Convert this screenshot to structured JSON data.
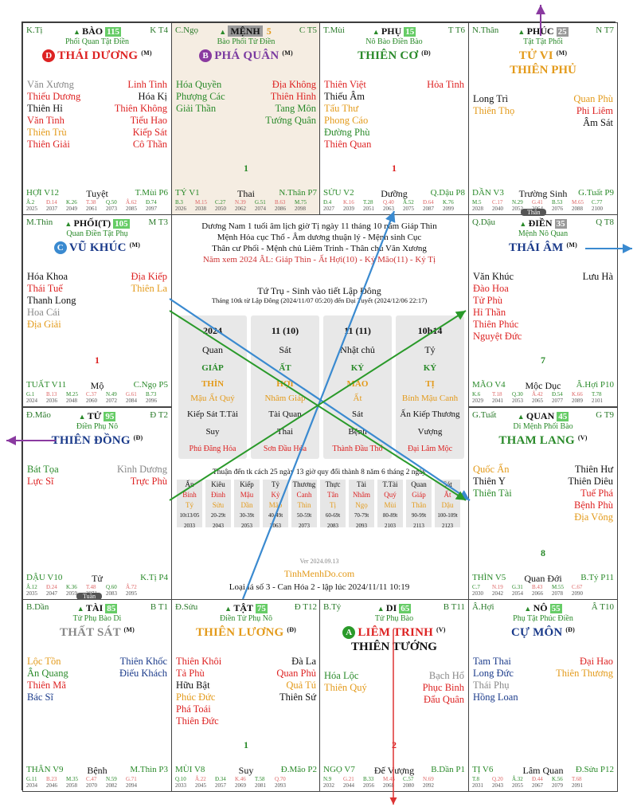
{
  "cells": [
    {
      "id": "ti",
      "pos_left": "K.Tị",
      "pos_name": "BÀO",
      "score": "115",
      "pos_right": "K T4",
      "sub": "Phối Quan Tật Điền",
      "main": "THÁI DƯƠNG",
      "main_suf": "(M)",
      "badge": "D",
      "left": [
        [
          "Văn Xương",
          "gry"
        ],
        [
          "Thiếu Dương",
          "red"
        ],
        [
          "Thiên Hỉ",
          "dk"
        ],
        [
          "Văn Tinh",
          "red"
        ],
        [
          "Thiên Trù",
          "org"
        ],
        [
          "Thiên Giải",
          "red"
        ]
      ],
      "right": [
        [
          "Linh Tinh",
          "red"
        ],
        [
          "Hóa Kị",
          "dk"
        ],
        [
          "Thiên Không",
          "red"
        ],
        [
          "Tiểu Hao",
          "red"
        ],
        [
          "Kiếp Sát",
          "red"
        ],
        [
          "Cô Thần",
          "red"
        ]
      ],
      "mid": "",
      "b1": "HỢI V12",
      "b2": "Tuyệt",
      "b3": "T.Mùi P6",
      "ages": [
        "Â.2",
        "Đ.14",
        "K.26",
        "T.38",
        "Q.50",
        "Â.62",
        "Đ.74"
      ],
      "years": [
        "2025",
        "2037",
        "2049",
        "2061",
        "2073",
        "2085",
        "2097"
      ]
    },
    {
      "id": "ngo",
      "pos_left": "C.Ngọ",
      "pos_name": "MỆNH",
      "score": "5",
      "pos_right": "C T5",
      "sub": "Bào Phối Tử Điền",
      "main": "PHÁ QUÂN",
      "main_suf": "(M)",
      "badge": "B",
      "left": [
        [
          "Hóa Quyền",
          "grn"
        ],
        [
          "Phượng Các",
          "grn"
        ],
        [
          "Giải Thần",
          "grn"
        ]
      ],
      "right": [
        [
          "Địa Không",
          "red"
        ],
        [
          "Thiên Hình",
          "red"
        ],
        [
          "Tang Môn",
          "grn"
        ],
        [
          "Tướng Quân",
          "grn"
        ]
      ],
      "mid": "1",
      "b1": "TÝ V1",
      "b2": "Thai",
      "b3": "N.Thân P7",
      "ages": [
        "B.3",
        "M.15",
        "C.27",
        "N.39",
        "G.51",
        "B.63",
        "M.75"
      ],
      "years": [
        "2026",
        "2038",
        "2050",
        "2062",
        "2074",
        "2086",
        "2098"
      ]
    },
    {
      "id": "mui",
      "pos_left": "T.Mùi",
      "pos_name": "PHỤ",
      "score": "15",
      "pos_right": "T T6",
      "sub": "Nô Bào Điền Bào",
      "main": "THIÊN CƠ",
      "main_suf": "(Đ)",
      "badge": "",
      "left": [
        [
          "Thiên Việt",
          "red"
        ],
        [
          "Thiếu Âm",
          "dk"
        ],
        [
          "Tấu Thư",
          "org"
        ],
        [
          "Phong Cáo",
          "org"
        ],
        [
          "Đường Phù",
          "grn"
        ],
        [
          "Thiên Quan",
          "red"
        ]
      ],
      "right": [
        [
          "Hỏa Tinh",
          "red"
        ]
      ],
      "mid": "1",
      "b1": "SỬU V2",
      "b2": "Dưỡng",
      "b3": "Q.Dậu P8",
      "ages": [
        "Đ.4",
        "K.16",
        "T.28",
        "Q.40",
        "Â.52",
        "Đ.64",
        "K.76"
      ],
      "years": [
        "2027",
        "2039",
        "2051",
        "2063",
        "2075",
        "2087",
        "2099"
      ]
    },
    {
      "id": "than",
      "pos_left": "N.Thân",
      "pos_name": "PHÚC",
      "score": "25",
      "pos_right": "N T7",
      "sub": "Tật Tật Phối",
      "main": "TỬ VI",
      "main_suf": "(M)",
      "main2": "THIÊN PHỦ",
      "badge": "",
      "left": [
        [
          "Long Trì",
          "dk"
        ],
        [
          "Thiên Thọ",
          "org"
        ]
      ],
      "right": [
        [
          "Quan Phù",
          "org"
        ],
        [
          "Phi Liêm",
          "red"
        ],
        [
          "Âm Sát",
          "dk"
        ]
      ],
      "mid": "",
      "b1": "DẦN V3",
      "b2": "Trường Sinh",
      "b3": "G.Tuất P9",
      "ages": [
        "M.5",
        "C.17",
        "N.29",
        "G.41",
        "B.53",
        "M.65",
        "C.77"
      ],
      "years": [
        "2028",
        "2040",
        "2052",
        "2064",
        "2076",
        "2088",
        "2100"
      ]
    },
    {
      "id": "thin",
      "pos_left": "M.Thìn",
      "pos_name": "PHỐI(T)",
      "score": "105",
      "pos_right": "M T3",
      "sub": "Quan Điền Tật Phụ",
      "main": "VŨ KHÚC",
      "main_suf": "(M)",
      "badge": "C",
      "left": [
        [
          "Hóa Khoa",
          "dk"
        ],
        [
          "Thái Tuế",
          "red"
        ],
        [
          "Thanh Long",
          "dk"
        ],
        [
          "Hoa Cái",
          "gry"
        ],
        [
          "Địa Giải",
          "org"
        ]
      ],
      "right": [
        [
          "Địa Kiếp",
          "red"
        ],
        [
          "Thiên La",
          "org"
        ]
      ],
      "mid": "1",
      "b1": "TUẤT V11",
      "b2": "Mộ",
      "b3": "C.Ngọ P5",
      "ages": [
        "G.1",
        "B.13",
        "M.25",
        "C.37",
        "N.49",
        "G.61",
        "B.73"
      ],
      "years": [
        "2024",
        "2036",
        "2048",
        "2060",
        "2072",
        "2084",
        "2096"
      ]
    },
    {
      "id": "dau",
      "pos_left": "Q.Dậu",
      "pos_name": "ĐIỀN",
      "score": "35",
      "pos_right": "Q T8",
      "sub": "Mệnh Nô Quan",
      "main": "THÁI ÂM",
      "main_suf": "(M)",
      "badge": "",
      "left": [
        [
          "Văn Khúc",
          "dk"
        ],
        [
          "Đào Hoa",
          "red"
        ],
        [
          "Tử Phù",
          "red"
        ],
        [
          "Hỉ Thần",
          "red"
        ],
        [
          "Thiên Phúc",
          "red"
        ],
        [
          "Nguyệt Đức",
          "red"
        ]
      ],
      "right": [
        [
          "Lưu Hà",
          "dk"
        ]
      ],
      "mid": "7",
      "b1": "MÃO V4",
      "b2": "Mộc Dục",
      "b3": "Â.Hợi P10",
      "ages": [
        "K.6",
        "T.18",
        "Q.30",
        "Â.42",
        "Đ.54",
        "K.66",
        "T.78"
      ],
      "years": [
        "2029",
        "2041",
        "2053",
        "2065",
        "2077",
        "2089",
        "2101"
      ]
    },
    {
      "id": "mao",
      "pos_left": "Đ.Mão",
      "pos_name": "TỬ",
      "score": "95",
      "pos_right": "Đ T2",
      "sub": "Điền Phụ Nô",
      "main": "THIÊN ĐỒNG",
      "main_suf": "(Đ)",
      "badge": "",
      "left": [
        [
          "Bát Tọa",
          "grn"
        ],
        [
          "Lực Sĩ",
          "red"
        ]
      ],
      "right": [
        [
          "Kình Dương",
          "gry"
        ],
        [
          "Trực Phù",
          "red"
        ]
      ],
      "mid": "",
      "b1": "DẬU V10",
      "b2": "Tử",
      "b3": "K.Tị P4",
      "ages": [
        "Â.12",
        "Đ.24",
        "K.36",
        "T.48",
        "Q.60",
        "Â.72",
        ""
      ],
      "years": [
        "2035",
        "2047",
        "2059",
        "2071",
        "2083",
        "2095",
        ""
      ]
    },
    {
      "id": "tuat",
      "pos_left": "G.Tuất",
      "pos_name": "QUAN",
      "score": "45",
      "pos_right": "G T9",
      "sub": "Di Mệnh Phối Bào",
      "main": "THAM LANG",
      "main_suf": "(V)",
      "badge": "",
      "left": [
        [
          "Quốc Ấn",
          "org"
        ],
        [
          "Thiên Y",
          "dk"
        ],
        [
          "Thiên Tài",
          "grn"
        ]
      ],
      "right": [
        [
          "Thiên Hư",
          "dk"
        ],
        [
          "Thiên Diêu",
          "dk"
        ],
        [
          "Tuế Phá",
          "red"
        ],
        [
          "Bệnh Phù",
          "red"
        ],
        [
          "Địa Võng",
          "org"
        ]
      ],
      "mid": "8",
      "b1": "THÌN V5",
      "b2": "Quan Đới",
      "b3": "B.Tý P11",
      "ages": [
        "C.7",
        "N.19",
        "G.31",
        "B.43",
        "M.55",
        "C.67",
        ""
      ],
      "years": [
        "2030",
        "2042",
        "2054",
        "2066",
        "2078",
        "2090",
        ""
      ]
    },
    {
      "id": "dan",
      "pos_left": "B.Dần",
      "pos_name": "TÀI",
      "score": "85",
      "pos_right": "B T1",
      "sub": "Tử Phụ Bào Di",
      "main": "THẤT SÁT",
      "main_suf": "(M)",
      "badge": "",
      "left": [
        [
          "Lộc Tồn",
          "org"
        ],
        [
          "Ân Quang",
          "grn"
        ],
        [
          "Thiên Mã",
          "red"
        ],
        [
          "Bác Sĩ",
          "blu"
        ]
      ],
      "right": [
        [
          "Thiên Khốc",
          "blu"
        ],
        [
          "Điếu Khách",
          "blu"
        ]
      ],
      "mid": "",
      "b1": "THÂN V9",
      "b2": "Bệnh",
      "b3": "M.Thìn P3",
      "ages": [
        "G.11",
        "B.23",
        "M.35",
        "C.47",
        "N.59",
        "G.71",
        ""
      ],
      "years": [
        "2034",
        "2046",
        "2058",
        "2070",
        "2082",
        "2094",
        ""
      ]
    },
    {
      "id": "suu",
      "pos_left": "Đ.Sửu",
      "pos_name": "TẬT",
      "score": "75",
      "pos_right": "Đ T12",
      "sub": "Điền Tử Phụ Nô",
      "main": "THIÊN LƯƠNG",
      "main_suf": "(Đ)",
      "badge": "",
      "left": [
        [
          "Thiên Khôi",
          "red"
        ],
        [
          "Tả Phù",
          "red"
        ],
        [
          "Hữu Bật",
          "dk"
        ],
        [
          "Phúc Đức",
          "org"
        ],
        [
          "Phá Toái",
          "red"
        ],
        [
          "Thiên Đức",
          "red"
        ]
      ],
      "right": [
        [
          "Đà La",
          "dk"
        ],
        [
          "Quan Phủ",
          "red"
        ],
        [
          "Quả Tú",
          "org"
        ],
        [
          "Thiên Sứ",
          "dk"
        ]
      ],
      "mid": "1",
      "b1": "MÙI V8",
      "b2": "Suy",
      "b3": "Đ.Mão P2",
      "ages": [
        "Q.10",
        "Â.22",
        "Đ.34",
        "K.46",
        "T.58",
        "Q.70",
        ""
      ],
      "years": [
        "2033",
        "2045",
        "2057",
        "2069",
        "2081",
        "2093",
        ""
      ]
    },
    {
      "id": "ty",
      "pos_left": "B.Tý",
      "pos_name": "DI",
      "score": "65",
      "pos_right": "B T11",
      "sub": "Tử Phụ Bào",
      "main": "LIÊM TRINH",
      "main_suf": "(V)",
      "main2": "THIÊN TƯỚNG",
      "badge": "A",
      "left": [
        [
          "Hóa Lộc",
          "grn"
        ],
        [
          "Thiên Quý",
          "org"
        ]
      ],
      "right": [
        [
          "Bạch Hổ",
          "gry"
        ],
        [
          "Phục Binh",
          "red"
        ],
        [
          "Đẩu Quân",
          "red"
        ]
      ],
      "mid": "2",
      "b1": "NGỌ V7",
      "b2": "Đế Vượng",
      "b3": "B.Dần P1",
      "ages": [
        "N.9",
        "G.21",
        "B.33",
        "M.45",
        "C.57",
        "N.69",
        ""
      ],
      "years": [
        "2032",
        "2044",
        "2056",
        "2068",
        "2080",
        "2092",
        ""
      ]
    },
    {
      "id": "hoi",
      "pos_left": "Â.Hợi",
      "pos_name": "NÔ",
      "score": "55",
      "pos_right": "Â T10",
      "sub": "Phụ Tật Phúc Điền",
      "main": "CỰ MÔN",
      "main_suf": "(Đ)",
      "badge": "",
      "left": [
        [
          "Tam Thai",
          "blu"
        ],
        [
          "Long Đức",
          "blu"
        ],
        [
          "Thái Phụ",
          "gry"
        ],
        [
          "Hồng Loan",
          "blu"
        ]
      ],
      "right": [
        [
          "Đại Hao",
          "red"
        ],
        [
          "Thiên Thương",
          "org"
        ]
      ],
      "mid": "",
      "b1": "TỊ V6",
      "b2": "Lâm Quan",
      "b3": "Đ.Sửu P12",
      "ages": [
        "T.8",
        "Q.20",
        "Â.32",
        "Đ.44",
        "K.56",
        "T.68",
        ""
      ],
      "years": [
        "2031",
        "2043",
        "2055",
        "2067",
        "2079",
        "2091",
        ""
      ]
    }
  ],
  "center": {
    "line1": "Dương Nam 1 tuổi âm lịch giờ Tị ngày 11 tháng 10 năm Giáp Thìn",
    "line2": "Mệnh Hỏa cục Thổ - Âm dương thuận lý - Mệnh sinh Cục",
    "line3": "Thân cư Phối - Mệnh chủ Liêm Trinh - Thân chủ Văn Xương",
    "line4": "Năm xem 2024 ÂL: Giáp Thìn - Ất Hợi(10) - Kỷ Mão(11) - Kỷ Tị",
    "title": "Tứ Trụ - Sinh vào tiết Lập Đông",
    "subtitle": "Tháng 10tk từ Lập Đông (2024/11/07 05:20) đến Đại Tuyết (2024/12/06 22:17)",
    "pillars": [
      {
        "h": "2024",
        "a": "Quan",
        "b": "GIÁP",
        "c": "THÌN",
        "d": "Mậu  Ất  Quý",
        "e": "Kiếp  Sát  T.Tài",
        "f": "Suy",
        "g": "Phú Đăng Hỏa"
      },
      {
        "h": "11 (10)",
        "a": "Sát",
        "b": "ẤT",
        "c": "HỢI",
        "d": "Nhâm  Giáp",
        "e": "Tài  Quan",
        "f": "Thai",
        "g": "Sơn Đầu Hỏa"
      },
      {
        "h": "11 (11)",
        "a": "Nhật chủ",
        "b": "KỶ",
        "c": "MÃO",
        "d": "Ất",
        "e": "Sát",
        "f": "Bệnh",
        "g": "Thành Đầu Thổ"
      },
      {
        "h": "10h14",
        "a": "Tỷ",
        "b": "KỶ",
        "c": "TỊ",
        "d": "Bính  Mậu  Canh",
        "e": "Ấn  Kiếp  Thương",
        "f": "Vượng",
        "g": "Đại Lâm Mộc"
      }
    ],
    "dv_title": "Thuận đến tk cách 25 ngày 13 giờ quy đổi thành 8 năm 6 tháng 2 ngày",
    "dv": [
      [
        "Ấn",
        "Bính",
        "Tý",
        "10t13/05",
        "2033"
      ],
      [
        "Kiêu",
        "Đinh",
        "Sửu",
        "20-29t",
        "2043"
      ],
      [
        "Kiếp",
        "Mậu",
        "Dần",
        "30-39t",
        "2053"
      ],
      [
        "Tỷ",
        "Kỷ",
        "Mão",
        "40-49t",
        "2063"
      ],
      [
        "Thương",
        "Canh",
        "Thìn",
        "50-59t",
        "2073"
      ],
      [
        "Thực",
        "Tân",
        "Tị",
        "60-69t",
        "2083"
      ],
      [
        "Tài",
        "Nhâm",
        "Ngọ",
        "70-79t",
        "2093"
      ],
      [
        "T.Tài",
        "Quý",
        "Mùi",
        "80-89t",
        "2103"
      ],
      [
        "Quan",
        "Giáp",
        "Thân",
        "90-99t",
        "2113"
      ],
      [
        "Sát",
        "Ất",
        "Dậu",
        "100-109t",
        "2123"
      ]
    ],
    "ver": "Ver 2024.09.13",
    "site": "TinhMenhDo.com",
    "footer": "Loại lá số 3 - Can Hóa 2 - lập lúc 2024/11/11 10:19"
  },
  "tags": {
    "than": "Thân",
    "tuan": "Tuần"
  },
  "colors": {
    "green": "#2a8a2a",
    "red": "#d22",
    "orange": "#e39a1a",
    "blue_arrow": "#3a8ad0",
    "purple": "#8a3aa0",
    "dark_red": "#c43"
  }
}
